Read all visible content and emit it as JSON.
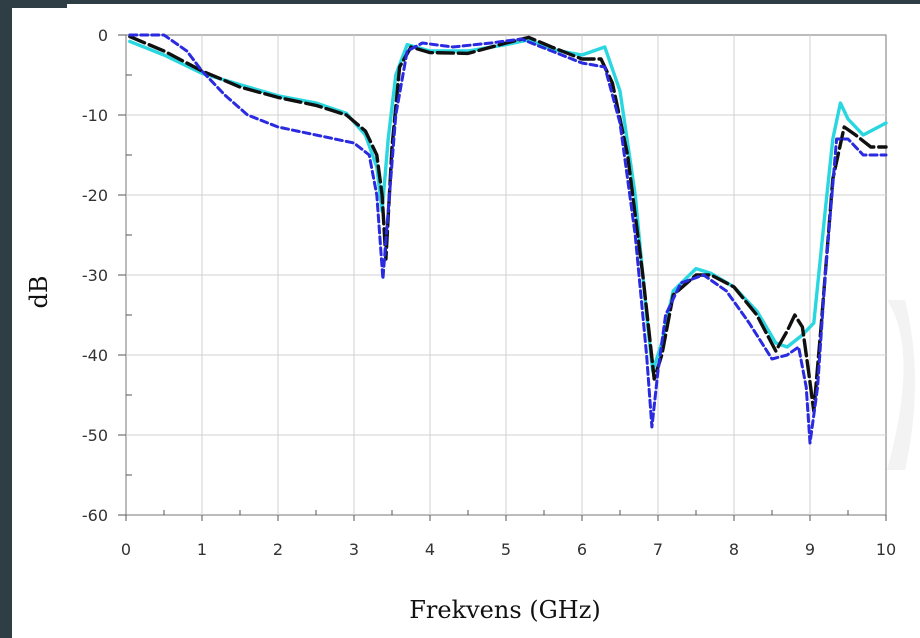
{
  "chart_data": {
    "type": "line",
    "xlabel": "Frekvens (GHz)",
    "ylabel": "dB",
    "xlim": [
      0,
      10
    ],
    "ylim": [
      -60,
      0
    ],
    "x_ticks": [
      "0",
      "1",
      "2",
      "3",
      "4",
      "5",
      "6",
      "7",
      "8",
      "9",
      "10"
    ],
    "y_ticks": [
      "0",
      "-10",
      "-20",
      "-30",
      "-40",
      "-50",
      "-60"
    ],
    "grid": true,
    "legend": false,
    "series": [
      {
        "color": "#2ad7e0",
        "style": "solid",
        "points": [
          [
            0.05,
            -0.8
          ],
          [
            0.5,
            -2.5
          ],
          [
            1.0,
            -4.8
          ],
          [
            1.5,
            -6.2
          ],
          [
            2.0,
            -7.6
          ],
          [
            2.5,
            -8.5
          ],
          [
            2.9,
            -9.8
          ],
          [
            3.15,
            -12.5
          ],
          [
            3.3,
            -16.5
          ],
          [
            3.37,
            -22.0
          ],
          [
            3.45,
            -13.0
          ],
          [
            3.55,
            -5.0
          ],
          [
            3.7,
            -1.2
          ],
          [
            4.0,
            -2.0
          ],
          [
            4.5,
            -2.0
          ],
          [
            5.0,
            -1.2
          ],
          [
            5.3,
            -0.6
          ],
          [
            5.6,
            -1.8
          ],
          [
            6.0,
            -2.5
          ],
          [
            6.3,
            -1.5
          ],
          [
            6.5,
            -7.0
          ],
          [
            6.7,
            -20.0
          ],
          [
            6.85,
            -35.0
          ],
          [
            6.93,
            -42.0
          ],
          [
            7.05,
            -38.5
          ],
          [
            7.2,
            -32.0
          ],
          [
            7.5,
            -29.2
          ],
          [
            7.7,
            -29.8
          ],
          [
            8.0,
            -31.5
          ],
          [
            8.3,
            -34.5
          ],
          [
            8.55,
            -38.5
          ],
          [
            8.7,
            -39.0
          ],
          [
            8.9,
            -37.5
          ],
          [
            9.05,
            -36.0
          ],
          [
            9.2,
            -22.0
          ],
          [
            9.3,
            -13.0
          ],
          [
            9.4,
            -8.5
          ],
          [
            9.5,
            -10.5
          ],
          [
            9.7,
            -12.5
          ],
          [
            9.9,
            -11.5
          ],
          [
            10.0,
            -11.0
          ]
        ]
      },
      {
        "color": "#101010",
        "style": "longdash",
        "points": [
          [
            0.05,
            -0.2
          ],
          [
            0.5,
            -2.0
          ],
          [
            1.0,
            -4.5
          ],
          [
            1.5,
            -6.5
          ],
          [
            2.0,
            -7.8
          ],
          [
            2.5,
            -8.8
          ],
          [
            2.9,
            -10.0
          ],
          [
            3.15,
            -12.0
          ],
          [
            3.3,
            -15.0
          ],
          [
            3.37,
            -20.0
          ],
          [
            3.42,
            -28.0
          ],
          [
            3.5,
            -14.0
          ],
          [
            3.6,
            -4.0
          ],
          [
            3.75,
            -1.5
          ],
          [
            4.0,
            -2.2
          ],
          [
            4.5,
            -2.3
          ],
          [
            5.0,
            -1.0
          ],
          [
            5.3,
            -0.3
          ],
          [
            5.6,
            -1.5
          ],
          [
            6.0,
            -3.0
          ],
          [
            6.25,
            -3.0
          ],
          [
            6.4,
            -6.0
          ],
          [
            6.6,
            -15.0
          ],
          [
            6.8,
            -30.0
          ],
          [
            6.95,
            -43.0
          ],
          [
            7.05,
            -40.0
          ],
          [
            7.2,
            -32.5
          ],
          [
            7.5,
            -30.0
          ],
          [
            7.7,
            -30.0
          ],
          [
            8.0,
            -31.5
          ],
          [
            8.3,
            -35.0
          ],
          [
            8.55,
            -39.5
          ],
          [
            8.7,
            -37.0
          ],
          [
            8.8,
            -35.0
          ],
          [
            8.9,
            -36.5
          ],
          [
            8.98,
            -42.0
          ],
          [
            9.05,
            -47.0
          ],
          [
            9.15,
            -36.0
          ],
          [
            9.3,
            -18.0
          ],
          [
            9.45,
            -11.5
          ],
          [
            9.6,
            -12.5
          ],
          [
            9.8,
            -14.0
          ],
          [
            10.0,
            -14.0
          ]
        ]
      },
      {
        "color": "#2a2ae0",
        "style": "shortdash",
        "points": [
          [
            0.05,
            0.0
          ],
          [
            0.5,
            0.0
          ],
          [
            0.8,
            -2.0
          ],
          [
            1.0,
            -4.5
          ],
          [
            1.3,
            -7.5
          ],
          [
            1.6,
            -10.0
          ],
          [
            2.0,
            -11.5
          ],
          [
            2.5,
            -12.5
          ],
          [
            3.0,
            -13.5
          ],
          [
            3.2,
            -15.0
          ],
          [
            3.3,
            -20.0
          ],
          [
            3.38,
            -30.5
          ],
          [
            3.45,
            -22.0
          ],
          [
            3.55,
            -10.0
          ],
          [
            3.7,
            -2.0
          ],
          [
            3.9,
            -1.0
          ],
          [
            4.3,
            -1.5
          ],
          [
            4.8,
            -1.0
          ],
          [
            5.2,
            -0.5
          ],
          [
            5.6,
            -2.0
          ],
          [
            6.0,
            -3.5
          ],
          [
            6.3,
            -4.0
          ],
          [
            6.5,
            -11.0
          ],
          [
            6.7,
            -25.0
          ],
          [
            6.85,
            -40.0
          ],
          [
            6.92,
            -49.0
          ],
          [
            7.0,
            -42.0
          ],
          [
            7.1,
            -35.0
          ],
          [
            7.3,
            -31.0
          ],
          [
            7.6,
            -30.0
          ],
          [
            7.9,
            -32.0
          ],
          [
            8.2,
            -36.0
          ],
          [
            8.5,
            -40.5
          ],
          [
            8.7,
            -40.0
          ],
          [
            8.85,
            -39.0
          ],
          [
            8.95,
            -44.0
          ],
          [
            9.0,
            -51.0
          ],
          [
            9.1,
            -44.0
          ],
          [
            9.2,
            -30.0
          ],
          [
            9.35,
            -13.0
          ],
          [
            9.5,
            -13.0
          ],
          [
            9.7,
            -15.0
          ],
          [
            10.0,
            -15.0
          ]
        ]
      }
    ]
  }
}
